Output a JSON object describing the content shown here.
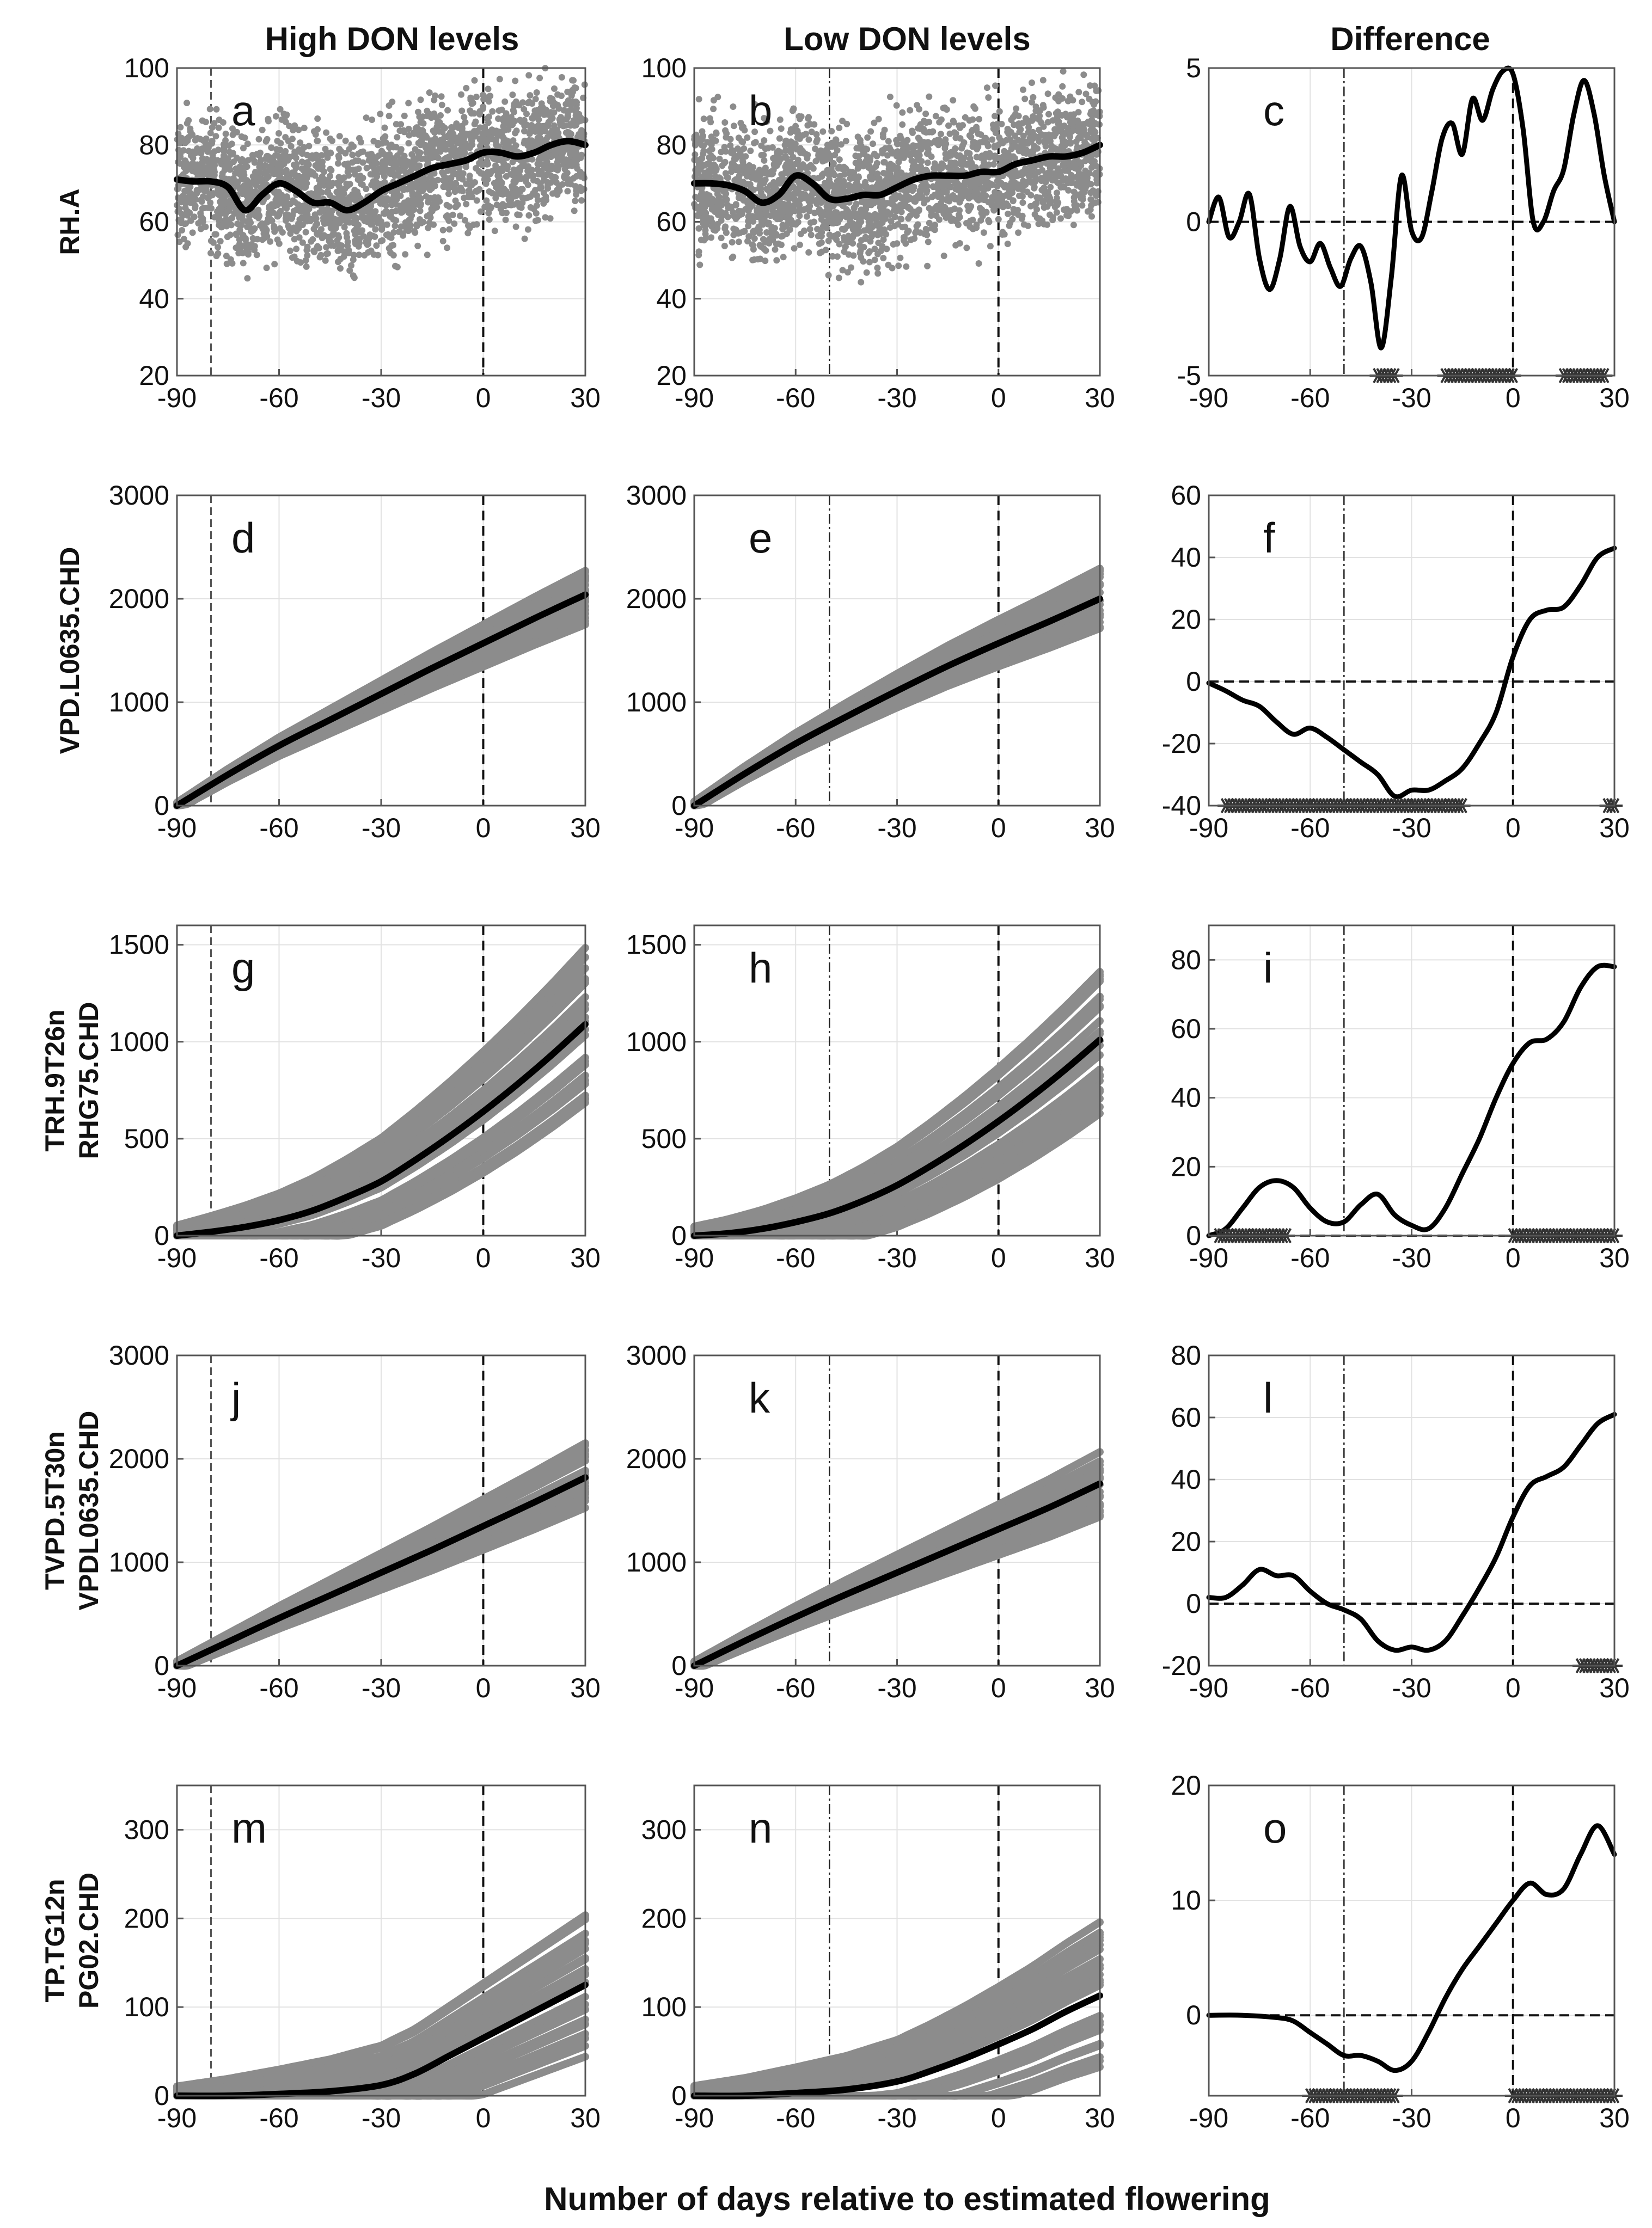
{
  "column_titles": [
    "High DON levels",
    "Low DON levels",
    "Difference"
  ],
  "xlabel": "Number of days relative to estimated flowering",
  "chart_data": [
    {
      "type": "line",
      "variable": "RH.A",
      "row_label_lines": [
        "RH.A"
      ],
      "x_ticks": [
        -90,
        -60,
        -30,
        0,
        30
      ],
      "xlim": [
        -90,
        30
      ],
      "main_ylim": [
        20,
        100
      ],
      "main_yticks": [
        20,
        40,
        60,
        80,
        100
      ],
      "spread": 12,
      "diff_ylim": [
        -5,
        5
      ],
      "diff_yticks": [
        -5,
        0,
        5
      ],
      "panels": [
        {
          "letter": "a",
          "column": "High DON levels",
          "marker_x": -80,
          "series": [
            {
              "name": "mean",
              "x": [
                -90,
                -85,
                -80,
                -75,
                -70,
                -65,
                -60,
                -55,
                -50,
                -45,
                -40,
                -35,
                -30,
                -25,
                -20,
                -15,
                -10,
                -5,
                0,
                5,
                10,
                15,
                20,
                25,
                30
              ],
              "y": [
                71,
                70.5,
                70.5,
                69,
                63,
                67,
                70,
                68,
                65,
                65,
                63,
                65,
                68,
                70,
                72,
                74,
                75,
                76,
                78,
                78,
                77,
                78,
                80,
                81,
                80
              ]
            }
          ]
        },
        {
          "letter": "b",
          "column": "Low DON levels",
          "marker_x": -50,
          "series": [
            {
              "name": "mean",
              "x": [
                -90,
                -85,
                -80,
                -75,
                -70,
                -65,
                -60,
                -55,
                -50,
                -45,
                -40,
                -35,
                -30,
                -25,
                -20,
                -15,
                -10,
                -5,
                0,
                5,
                10,
                15,
                20,
                25,
                30
              ],
              "y": [
                70,
                70,
                69.5,
                68,
                65,
                67,
                72,
                70,
                66,
                66,
                67,
                67,
                69,
                71,
                72,
                72,
                72,
                73,
                73,
                75,
                76,
                77,
                77,
                78,
                80
              ]
            }
          ]
        },
        {
          "letter": "c",
          "column": "Difference",
          "marker_x": -50,
          "series": [
            {
              "name": "difference",
              "x": [
                -90,
                -87,
                -84,
                -81,
                -78,
                -75,
                -72,
                -69,
                -66,
                -63,
                -60,
                -57,
                -54,
                -51,
                -48,
                -45,
                -42,
                -39,
                -36,
                -33,
                -30,
                -27,
                -24,
                -21,
                -18,
                -15,
                -12,
                -9,
                -6,
                -3,
                0,
                3,
                6,
                9,
                12,
                15,
                18,
                21,
                24,
                27,
                30
              ],
              "y": [
                0,
                0.8,
                -0.5,
                0,
                0.9,
                -1.2,
                -2.2,
                -1.2,
                0.5,
                -0.8,
                -1.3,
                -0.7,
                -1.5,
                -2.1,
                -1.2,
                -0.8,
                -2,
                -4.1,
                -1.8,
                1.5,
                -0.3,
                -0.5,
                1,
                2.7,
                3.2,
                2.2,
                4,
                3.3,
                4.3,
                4.9,
                4.8,
                3,
                0,
                0,
                1,
                1.7,
                3.5,
                4.6,
                3.5,
                1.5,
                0
              ]
            }
          ],
          "significant_ranges": [
            [
              -40,
              -35
            ],
            [
              -20,
              0
            ],
            [
              15,
              27
            ]
          ]
        }
      ]
    },
    {
      "type": "line",
      "variable": "VPD.L0635.CHD",
      "row_label_lines": [
        "VPD.L0635.CHD"
      ],
      "x_ticks": [
        -90,
        -60,
        -30,
        0,
        30
      ],
      "xlim": [
        -90,
        30
      ],
      "main_ylim": [
        0,
        3000
      ],
      "main_yticks": [
        0,
        1000,
        2000,
        3000
      ],
      "spread": 160,
      "diff_ylim": [
        -40,
        60
      ],
      "diff_yticks": [
        -40,
        -20,
        0,
        20,
        40,
        60
      ],
      "panels": [
        {
          "letter": "d",
          "column": "High DON levels",
          "marker_x": -80,
          "series": [
            {
              "name": "mean",
              "x": [
                -90,
                -75,
                -60,
                -45,
                -30,
                -15,
                0,
                15,
                30
              ],
              "y": [
                0,
                300,
                580,
                830,
                1080,
                1330,
                1570,
                1810,
                2040
              ]
            }
          ]
        },
        {
          "letter": "e",
          "column": "Low DON levels",
          "marker_x": -50,
          "series": [
            {
              "name": "mean",
              "x": [
                -90,
                -75,
                -60,
                -45,
                -30,
                -15,
                0,
                15,
                30
              ],
              "y": [
                0,
                310,
                600,
                860,
                1110,
                1350,
                1570,
                1780,
                2000
              ]
            }
          ]
        },
        {
          "letter": "f",
          "column": "Difference",
          "marker_x": -50,
          "series": [
            {
              "name": "difference",
              "x": [
                -90,
                -85,
                -80,
                -75,
                -70,
                -65,
                -60,
                -55,
                -50,
                -45,
                -40,
                -35,
                -30,
                -25,
                -20,
                -15,
                -10,
                -5,
                0,
                5,
                10,
                15,
                20,
                25,
                30
              ],
              "y": [
                -0.5,
                -3,
                -6,
                -8,
                -13,
                -17,
                -15,
                -18,
                -22,
                -26,
                -30,
                -37,
                -35,
                -35,
                -32,
                -28,
                -20,
                -10,
                8,
                20,
                23,
                24,
                31,
                40,
                43
              ]
            }
          ],
          "significant_ranges": [
            [
              -85,
              -15
            ],
            [
              28,
              30
            ]
          ]
        }
      ]
    },
    {
      "type": "line",
      "variable": "TRH.9T26n RHG75.CHD",
      "row_label_lines": [
        "TRH.9T26n",
        "RHG75.CHD"
      ],
      "x_ticks": [
        -90,
        -60,
        -30,
        0,
        30
      ],
      "xlim": [
        -90,
        30
      ],
      "main_ylim": [
        0,
        1600
      ],
      "main_yticks": [
        0,
        500,
        1000,
        1500
      ],
      "spread": 220,
      "diff_ylim": [
        0,
        90
      ],
      "diff_yticks": [
        0,
        20,
        40,
        60,
        80
      ],
      "panels": [
        {
          "letter": "g",
          "column": "High DON levels",
          "marker_x": -80,
          "series": [
            {
              "name": "mean",
              "x": [
                -90,
                -80,
                -70,
                -60,
                -50,
                -40,
                -30,
                -20,
                -10,
                0,
                10,
                20,
                30
              ],
              "y": [
                0,
                20,
                45,
                80,
                130,
                200,
                280,
                390,
                510,
                640,
                780,
                930,
                1090
              ]
            }
          ]
        },
        {
          "letter": "h",
          "column": "Low DON levels",
          "marker_x": -50,
          "series": [
            {
              "name": "mean",
              "x": [
                -90,
                -80,
                -70,
                -60,
                -50,
                -40,
                -30,
                -20,
                -10,
                0,
                10,
                20,
                30
              ],
              "y": [
                0,
                12,
                35,
                70,
                115,
                180,
                260,
                360,
                470,
                590,
                720,
                860,
                1010
              ]
            }
          ]
        },
        {
          "letter": "i",
          "column": "Difference",
          "marker_x": -50,
          "series": [
            {
              "name": "difference",
              "x": [
                -90,
                -85,
                -80,
                -75,
                -70,
                -65,
                -60,
                -55,
                -50,
                -45,
                -40,
                -35,
                -30,
                -25,
                -20,
                -15,
                -10,
                -5,
                0,
                5,
                10,
                15,
                20,
                25,
                30
              ],
              "y": [
                0,
                2,
                8,
                14,
                16,
                14,
                8,
                4,
                4,
                9,
                12,
                6,
                3,
                2,
                8,
                18,
                28,
                40,
                50,
                56,
                57,
                62,
                72,
                78,
                78
              ]
            }
          ],
          "significant_ranges": [
            [
              -87,
              -67
            ],
            [
              0,
              30
            ]
          ]
        }
      ]
    },
    {
      "type": "line",
      "variable": "TVPD.5T30n VPDL0635.CHD",
      "row_label_lines": [
        "TVPD.5T30n",
        "VPDL0635.CHD"
      ],
      "x_ticks": [
        -90,
        -60,
        -30,
        0,
        30
      ],
      "xlim": [
        -90,
        30
      ],
      "main_ylim": [
        0,
        3000
      ],
      "main_yticks": [
        0,
        1000,
        2000,
        3000
      ],
      "spread": 180,
      "diff_ylim": [
        -20,
        80
      ],
      "diff_yticks": [
        -20,
        0,
        20,
        40,
        60,
        80
      ],
      "panels": [
        {
          "letter": "j",
          "column": "High DON levels",
          "marker_x": -80,
          "series": [
            {
              "name": "mean",
              "x": [
                -90,
                -75,
                -60,
                -45,
                -30,
                -15,
                0,
                15,
                30
              ],
              "y": [
                0,
                230,
                460,
                680,
                900,
                1120,
                1350,
                1580,
                1820
              ]
            }
          ]
        },
        {
          "letter": "k",
          "column": "Low DON levels",
          "marker_x": -50,
          "series": [
            {
              "name": "mean",
              "x": [
                -90,
                -75,
                -60,
                -45,
                -30,
                -15,
                0,
                15,
                30
              ],
              "y": [
                0,
                240,
                470,
                690,
                900,
                1110,
                1320,
                1530,
                1760
              ]
            }
          ]
        },
        {
          "letter": "l",
          "column": "Difference",
          "marker_x": -50,
          "series": [
            {
              "name": "difference",
              "x": [
                -90,
                -85,
                -80,
                -75,
                -70,
                -65,
                -60,
                -55,
                -50,
                -45,
                -40,
                -35,
                -30,
                -25,
                -20,
                -15,
                -10,
                -5,
                0,
                5,
                10,
                15,
                20,
                25,
                30
              ],
              "y": [
                2,
                2,
                6,
                11,
                9,
                9,
                4,
                0,
                -2,
                -5,
                -12,
                -15,
                -14,
                -15,
                -12,
                -4,
                5,
                15,
                28,
                38,
                41,
                44,
                51,
                58,
                61
              ]
            }
          ],
          "significant_ranges": [
            [
              20,
              30
            ]
          ]
        }
      ]
    },
    {
      "type": "line",
      "variable": "TP.TG12n PG02.CHD",
      "row_label_lines": [
        "TP.TG12n",
        "PG02.CHD"
      ],
      "x_ticks": [
        -90,
        -60,
        -30,
        0,
        30
      ],
      "xlim": [
        -90,
        30
      ],
      "main_ylim": [
        0,
        350
      ],
      "main_yticks": [
        0,
        100,
        200,
        300
      ],
      "spread": 45,
      "diff_ylim": [
        -7,
        20
      ],
      "diff_yticks": [
        0,
        10,
        20
      ],
      "panels": [
        {
          "letter": "m",
          "column": "High DON levels",
          "marker_x": -80,
          "series": [
            {
              "name": "mean",
              "x": [
                -90,
                -75,
                -60,
                -45,
                -30,
                -20,
                -10,
                0,
                10,
                20,
                30
              ],
              "y": [
                0,
                0,
                2,
                5,
                12,
                25,
                45,
                65,
                85,
                105,
                125
              ]
            }
          ]
        },
        {
          "letter": "n",
          "column": "Low DON levels",
          "marker_x": -50,
          "series": [
            {
              "name": "mean",
              "x": [
                -90,
                -75,
                -60,
                -45,
                -30,
                -20,
                -10,
                0,
                10,
                20,
                30
              ],
              "y": [
                0,
                0,
                3,
                7,
                16,
                28,
                42,
                58,
                75,
                95,
                113
              ]
            }
          ]
        },
        {
          "letter": "o",
          "column": "Difference",
          "marker_x": -50,
          "series": [
            {
              "name": "difference",
              "x": [
                -90,
                -80,
                -70,
                -65,
                -60,
                -55,
                -50,
                -45,
                -40,
                -35,
                -30,
                -25,
                -20,
                -15,
                -10,
                -5,
                0,
                5,
                10,
                15,
                20,
                25,
                30
              ],
              "y": [
                0,
                0,
                -0.2,
                -0.5,
                -1.5,
                -2.5,
                -3.5,
                -3.5,
                -4,
                -4.8,
                -4,
                -1.5,
                1.5,
                4,
                6,
                8,
                10,
                11.5,
                10.5,
                11,
                14,
                16.5,
                14
              ]
            }
          ],
          "significant_ranges": [
            [
              -60,
              -35
            ],
            [
              0,
              30
            ]
          ]
        }
      ]
    }
  ]
}
